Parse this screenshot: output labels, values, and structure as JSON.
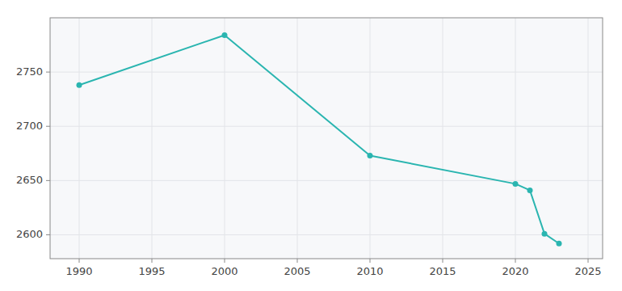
{
  "chart_data": {
    "type": "line",
    "x": [
      1990,
      2000,
      2010,
      2020,
      2021,
      2022,
      2023
    ],
    "values": [
      2738,
      2784,
      2673,
      2647,
      2641,
      2601,
      2592
    ],
    "color": "#2ab5b0",
    "marker": "circle",
    "xlim": [
      1988,
      2026
    ],
    "ylim": [
      2578,
      2800
    ],
    "xticks": [
      1990,
      1995,
      2000,
      2005,
      2010,
      2015,
      2020,
      2025
    ],
    "yticks": [
      2600,
      2650,
      2700,
      2750
    ],
    "grid": true
  }
}
